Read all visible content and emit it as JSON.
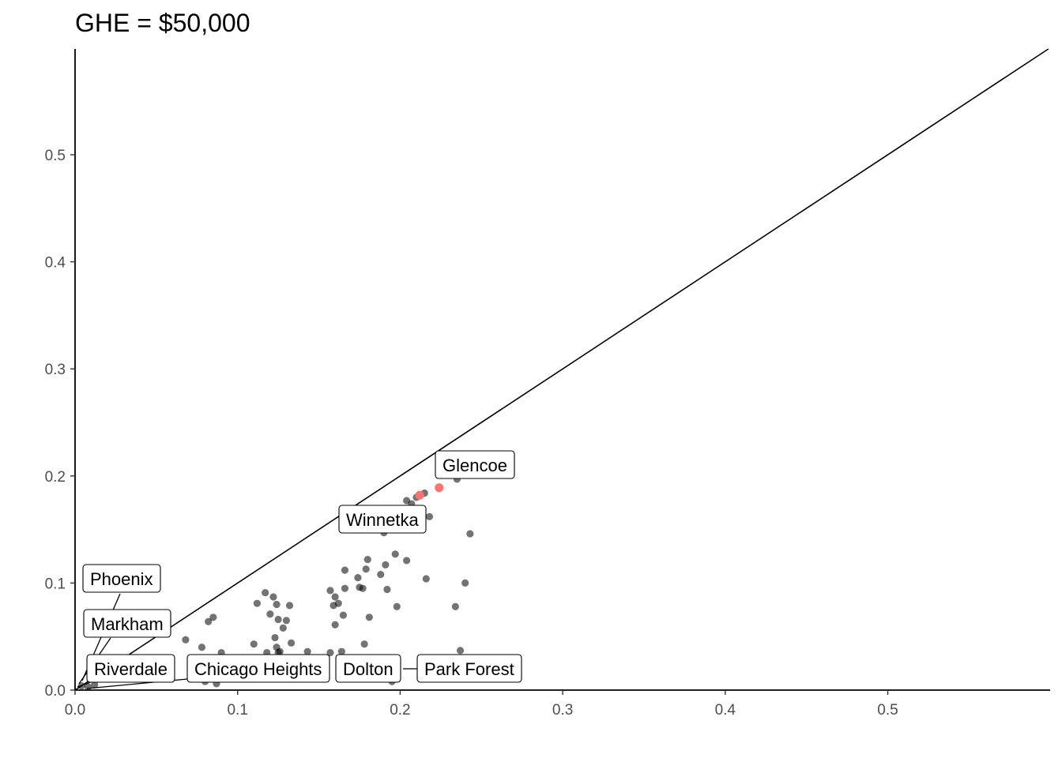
{
  "chart_data": {
    "type": "scatter",
    "title": "GHE = $50,000",
    "xlabel": "",
    "ylabel": "",
    "xlim": [
      0,
      0.6
    ],
    "ylim": [
      0,
      0.6
    ],
    "x_ticks": [
      "0.0",
      "0.1",
      "0.2",
      "0.3",
      "0.4",
      "0.5"
    ],
    "y_ticks": [
      "0.0",
      "0.1",
      "0.2",
      "0.3",
      "0.4",
      "0.5"
    ],
    "grid": false,
    "reference_line": "y = x",
    "colors": {
      "points": "#000000",
      "highlight": "#F8766D",
      "line": "#000000"
    },
    "points": [
      {
        "x": 0.004,
        "y": 0.004
      },
      {
        "x": 0.008,
        "y": 0.003
      },
      {
        "x": 0.012,
        "y": 0.005
      },
      {
        "x": 0.068,
        "y": 0.047
      },
      {
        "x": 0.078,
        "y": 0.04
      },
      {
        "x": 0.082,
        "y": 0.064
      },
      {
        "x": 0.085,
        "y": 0.068
      },
      {
        "x": 0.08,
        "y": 0.008
      },
      {
        "x": 0.087,
        "y": 0.006
      },
      {
        "x": 0.09,
        "y": 0.035
      },
      {
        "x": 0.11,
        "y": 0.043
      },
      {
        "x": 0.112,
        "y": 0.081
      },
      {
        "x": 0.117,
        "y": 0.091
      },
      {
        "x": 0.118,
        "y": 0.035
      },
      {
        "x": 0.12,
        "y": 0.071
      },
      {
        "x": 0.122,
        "y": 0.087
      },
      {
        "x": 0.123,
        "y": 0.049
      },
      {
        "x": 0.124,
        "y": 0.08
      },
      {
        "x": 0.125,
        "y": 0.066
      },
      {
        "x": 0.124,
        "y": 0.04
      },
      {
        "x": 0.125,
        "y": 0.035
      },
      {
        "x": 0.126,
        "y": 0.036
      },
      {
        "x": 0.128,
        "y": 0.058
      },
      {
        "x": 0.13,
        "y": 0.065
      },
      {
        "x": 0.132,
        "y": 0.079
      },
      {
        "x": 0.133,
        "y": 0.044
      },
      {
        "x": 0.143,
        "y": 0.036
      },
      {
        "x": 0.157,
        "y": 0.093
      },
      {
        "x": 0.157,
        "y": 0.035
      },
      {
        "x": 0.159,
        "y": 0.079
      },
      {
        "x": 0.16,
        "y": 0.061
      },
      {
        "x": 0.16,
        "y": 0.087
      },
      {
        "x": 0.162,
        "y": 0.081
      },
      {
        "x": 0.164,
        "y": 0.036
      },
      {
        "x": 0.165,
        "y": 0.07
      },
      {
        "x": 0.166,
        "y": 0.095
      },
      {
        "x": 0.166,
        "y": 0.112
      },
      {
        "x": 0.174,
        "y": 0.105
      },
      {
        "x": 0.175,
        "y": 0.096
      },
      {
        "x": 0.177,
        "y": 0.095
      },
      {
        "x": 0.178,
        "y": 0.043
      },
      {
        "x": 0.179,
        "y": 0.113
      },
      {
        "x": 0.18,
        "y": 0.122
      },
      {
        "x": 0.181,
        "y": 0.068
      },
      {
        "x": 0.188,
        "y": 0.108
      },
      {
        "x": 0.19,
        "y": 0.147
      },
      {
        "x": 0.191,
        "y": 0.117
      },
      {
        "x": 0.192,
        "y": 0.094
      },
      {
        "x": 0.195,
        "y": 0.008
      },
      {
        "x": 0.197,
        "y": 0.127
      },
      {
        "x": 0.198,
        "y": 0.078
      },
      {
        "x": 0.199,
        "y": 0.155
      },
      {
        "x": 0.204,
        "y": 0.121
      },
      {
        "x": 0.204,
        "y": 0.177
      },
      {
        "x": 0.207,
        "y": 0.174
      },
      {
        "x": 0.21,
        "y": 0.18
      },
      {
        "x": 0.215,
        "y": 0.184
      },
      {
        "x": 0.216,
        "y": 0.104
      },
      {
        "x": 0.218,
        "y": 0.162
      },
      {
        "x": 0.234,
        "y": 0.078
      },
      {
        "x": 0.235,
        "y": 0.197
      },
      {
        "x": 0.237,
        "y": 0.037
      },
      {
        "x": 0.24,
        "y": 0.1
      },
      {
        "x": 0.243,
        "y": 0.146
      }
    ],
    "highlighted_points": [
      {
        "x": 0.212,
        "y": 0.182
      },
      {
        "x": 0.224,
        "y": 0.189
      }
    ],
    "labels": [
      {
        "text": "Glencoe",
        "point": {
          "x": 0.224,
          "y": 0.189
        }
      },
      {
        "text": "Winnetka",
        "point": {
          "x": 0.212,
          "y": 0.182
        }
      },
      {
        "text": "Phoenix",
        "point": {
          "x": 0.002,
          "y": 0.002
        }
      },
      {
        "text": "Markham",
        "point": {
          "x": 0.004,
          "y": 0.003
        }
      },
      {
        "text": "Riverdale",
        "point": {
          "x": 0.006,
          "y": 0.002
        }
      },
      {
        "text": "Chicago Heights",
        "point": {
          "x": 0.012,
          "y": 0.004
        }
      },
      {
        "text": "Dolton",
        "point": {
          "x": 0.195,
          "y": 0.008
        }
      },
      {
        "text": "Park Forest",
        "point": {
          "x": 0.2,
          "y": 0.015
        }
      }
    ]
  }
}
